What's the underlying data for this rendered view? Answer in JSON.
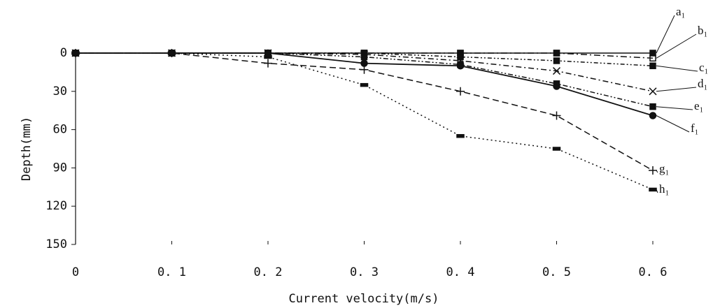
{
  "chart_data": {
    "type": "line",
    "x_label": "Current velocity(m/s)",
    "y_label": "Depth(mm)",
    "x": [
      0,
      0.1,
      0.2,
      0.3,
      0.4,
      0.5,
      0.6
    ],
    "xlim": [
      0,
      0.6
    ],
    "xticks": [
      0,
      {
        "value": 0.1,
        "label": "0. 1"
      },
      {
        "value": 0.2,
        "label": "0. 2"
      },
      {
        "value": 0.3,
        "label": "0. 3"
      },
      {
        "value": 0.4,
        "label": "0. 4"
      },
      {
        "value": 0.5,
        "label": "0. 5"
      },
      {
        "value": 0.6,
        "label": "0. 6"
      }
    ],
    "ylim": [
      0,
      150
    ],
    "yticks": [
      0,
      30,
      60,
      90,
      120,
      150
    ],
    "y_reversed": true,
    "color": "#111111",
    "series": [
      {
        "name": "a₁",
        "values": [
          0,
          0,
          0,
          0,
          0,
          0,
          0
        ]
      },
      {
        "name": "b₁",
        "values": [
          0,
          0,
          0,
          0,
          0,
          0,
          4
        ]
      },
      {
        "name": "c₁",
        "values": [
          0,
          0,
          0,
          0,
          3,
          6,
          10
        ]
      },
      {
        "name": "d₁",
        "values": [
          0,
          0,
          0,
          1,
          6,
          14,
          30
        ]
      },
      {
        "name": "e₁",
        "values": [
          0,
          0,
          0,
          3,
          9,
          24,
          42
        ]
      },
      {
        "name": "f₁",
        "values": [
          0,
          0,
          0,
          8,
          10,
          26,
          49
        ]
      },
      {
        "name": "g₁",
        "values": [
          0,
          0,
          8,
          13,
          30,
          49,
          92
        ]
      },
      {
        "name": "h₁",
        "values": [
          0,
          0,
          3,
          25,
          65,
          75,
          107
        ]
      }
    ]
  }
}
